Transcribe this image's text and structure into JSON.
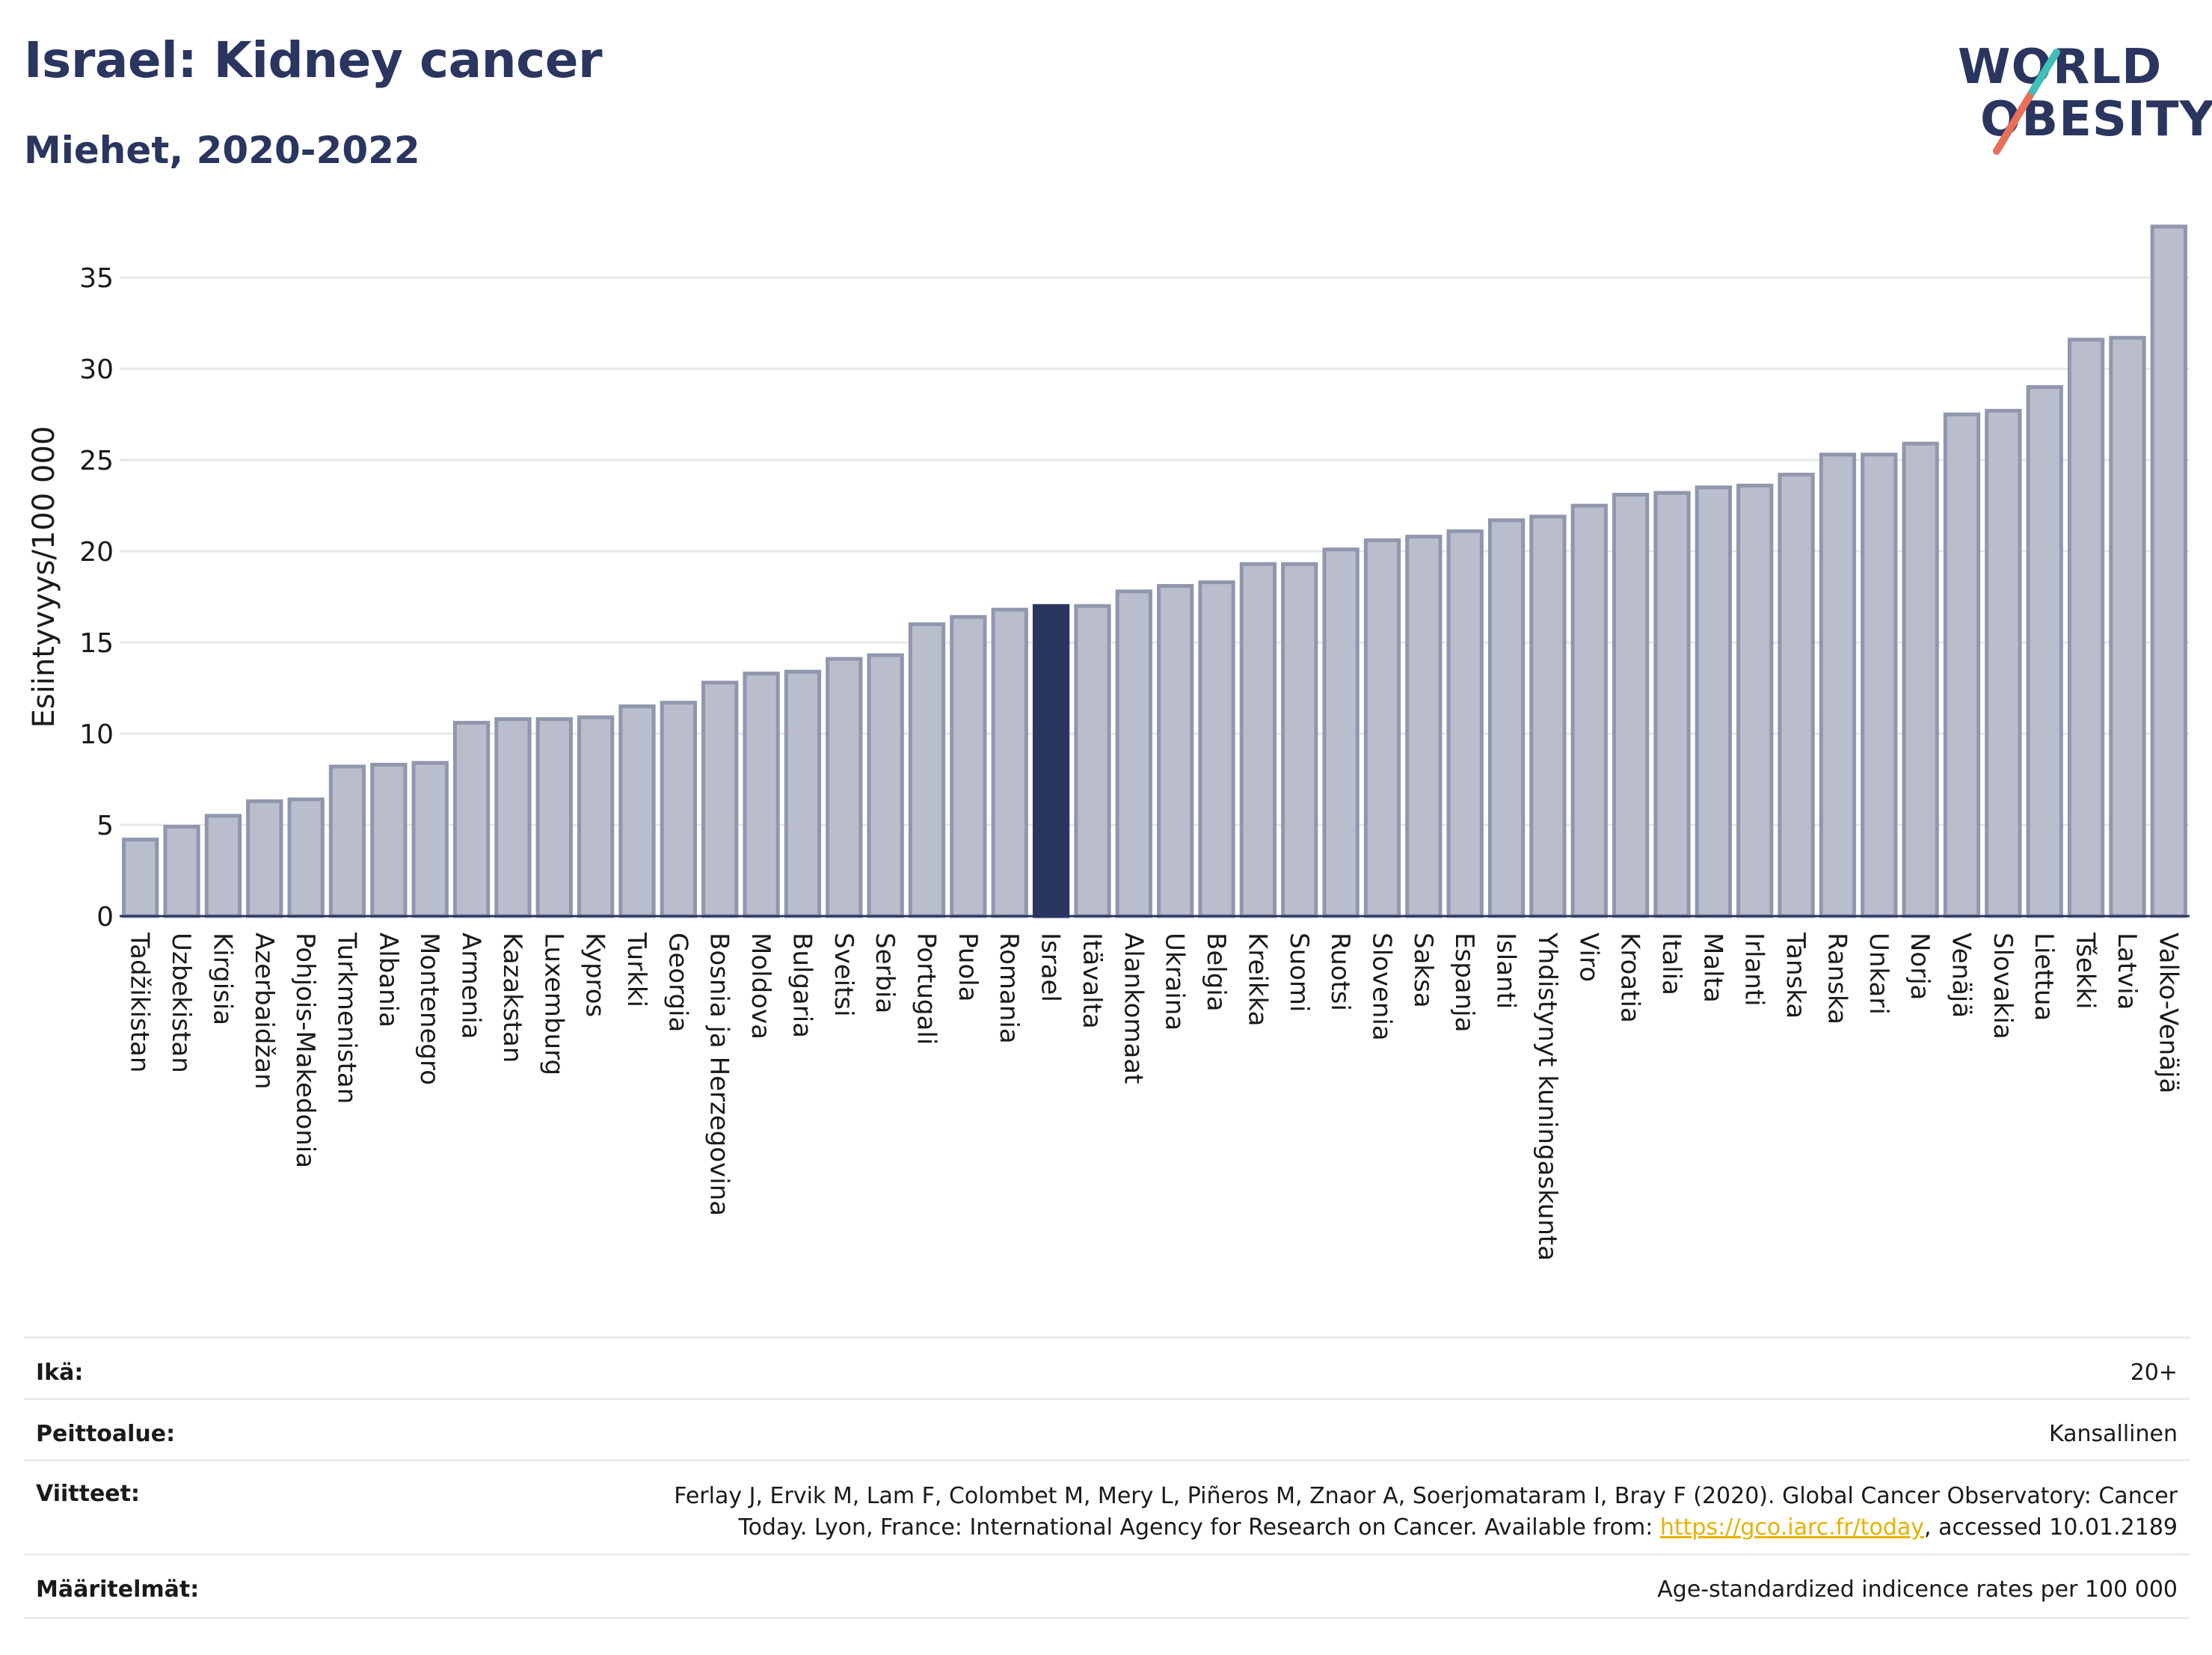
{
  "header": {
    "title": "Israel: Kidney cancer",
    "subtitle": "Miehet, 2020-2022"
  },
  "logo": {
    "line1": "WORLD",
    "line2": "OBESITY"
  },
  "colors": {
    "bar_default": "#b9bdcc",
    "bar_border": "#9097ad",
    "bar_highlight": "#2a3560",
    "title": "#2a3560",
    "logo_slash_teal": "#3fbfb8",
    "logo_slash_coral": "#e8705a",
    "link": "#e8b100"
  },
  "chart_data": {
    "type": "bar",
    "ylabel": "Esiintyvyys/100 000",
    "ylim": [
      0,
      38
    ],
    "yticks": [
      0,
      5,
      10,
      15,
      20,
      25,
      30,
      35
    ],
    "grid": true,
    "highlight": "Israel",
    "categories": [
      "Tadžikistan",
      "Uzbekistan",
      "Kirgisia",
      "Azerbaidžan",
      "Pohjois-Makedonia",
      "Turkmenistan",
      "Albania",
      "Montenegro",
      "Armenia",
      "Kazakstan",
      "Luxemburg",
      "Kypros",
      "Turkki",
      "Georgia",
      "Bosnia ja Herzegovina",
      "Moldova",
      "Bulgaria",
      "Sveitsi",
      "Serbia",
      "Portugali",
      "Puola",
      "Romania",
      "Israel",
      "Itävalta",
      "Alankomaat",
      "Ukraina",
      "Belgia",
      "Kreikka",
      "Suomi",
      "Ruotsi",
      "Slovenia",
      "Saksa",
      "Espanja",
      "Islanti",
      "Yhdistynyt kuningaskunta",
      "Viro",
      "Kroatia",
      "Italia",
      "Malta",
      "Irlanti",
      "Tanska",
      "Ranska",
      "Unkari",
      "Norja",
      "Venäjä",
      "Slovakia",
      "Liettua",
      "Tšekki",
      "Latvia",
      "Valko-Venäjä"
    ],
    "values": [
      4.2,
      4.9,
      5.5,
      6.3,
      6.4,
      8.2,
      8.3,
      8.4,
      10.6,
      10.8,
      10.8,
      10.9,
      11.5,
      11.7,
      12.8,
      13.3,
      13.4,
      14.1,
      14.3,
      16.0,
      16.4,
      16.8,
      17.0,
      17.0,
      17.8,
      18.1,
      18.3,
      19.3,
      19.3,
      20.1,
      20.6,
      20.8,
      21.1,
      21.7,
      21.9,
      22.5,
      23.1,
      23.2,
      23.5,
      23.6,
      24.2,
      25.3,
      25.3,
      25.9,
      27.5,
      27.7,
      29.0,
      31.6,
      31.7,
      37.8
    ]
  },
  "meta": {
    "age_label": "Ikä:",
    "age_value": "20+",
    "coverage_label": "Peittoalue:",
    "coverage_value": "Kansallinen",
    "refs_label": "Viitteet:",
    "refs_line1": "Ferlay J, Ervik M, Lam F, Colombet M, Mery L, Piñeros M, Znaor A, Soerjomataram I, Bray F (2020). Global Cancer Observatory: Cancer",
    "refs_line2_pre": "Today. Lyon, France: International Agency for Research on Cancer. Available from: ",
    "refs_link": "https://gco.iarc.fr/today",
    "refs_line2_post": ", accessed 10.01.2189",
    "defs_label": "Määritelmät:",
    "defs_value": "Age-standardized indicence rates per 100 000"
  }
}
